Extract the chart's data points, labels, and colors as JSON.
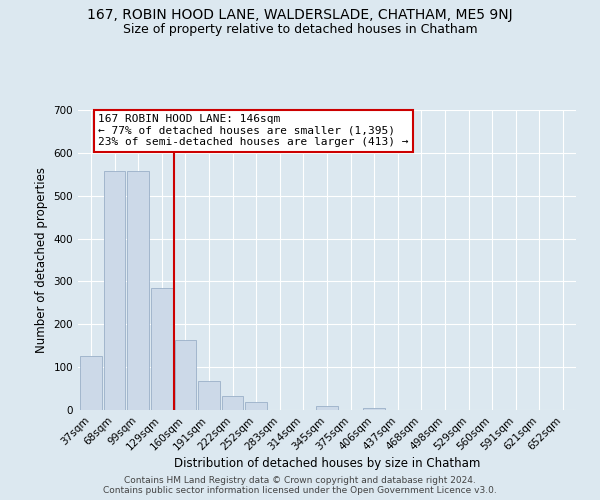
{
  "title": "167, ROBIN HOOD LANE, WALDERSLADE, CHATHAM, ME5 9NJ",
  "subtitle": "Size of property relative to detached houses in Chatham",
  "xlabel": "Distribution of detached houses by size in Chatham",
  "ylabel": "Number of detached properties",
  "bar_labels": [
    "37sqm",
    "68sqm",
    "99sqm",
    "129sqm",
    "160sqm",
    "191sqm",
    "222sqm",
    "252sqm",
    "283sqm",
    "314sqm",
    "345sqm",
    "375sqm",
    "406sqm",
    "437sqm",
    "468sqm",
    "498sqm",
    "529sqm",
    "560sqm",
    "591sqm",
    "621sqm",
    "652sqm"
  ],
  "bar_values": [
    125,
    557,
    557,
    285,
    163,
    68,
    32,
    19,
    0,
    0,
    10,
    0,
    5,
    0,
    0,
    0,
    0,
    0,
    0,
    0,
    0
  ],
  "bar_color": "#ccd9e8",
  "bar_edge_color": "#9ab0c8",
  "highlight_color": "#cc0000",
  "annotation_title": "167 ROBIN HOOD LANE: 146sqm",
  "annotation_line1": "← 77% of detached houses are smaller (1,395)",
  "annotation_line2": "23% of semi-detached houses are larger (413) →",
  "annotation_box_color": "#ffffff",
  "annotation_box_edge": "#cc0000",
  "footer_line1": "Contains HM Land Registry data © Crown copyright and database right 2024.",
  "footer_line2": "Contains public sector information licensed under the Open Government Licence v3.0.",
  "ylim": [
    0,
    700
  ],
  "yticks": [
    0,
    100,
    200,
    300,
    400,
    500,
    600,
    700
  ],
  "title_fontsize": 10,
  "subtitle_fontsize": 9,
  "axis_label_fontsize": 8.5,
  "tick_fontsize": 7.5,
  "annotation_fontsize": 8,
  "footer_fontsize": 6.5,
  "bg_color": "#dce8f0",
  "plot_bg_color": "#dce8f0",
  "grid_color": "#ffffff"
}
